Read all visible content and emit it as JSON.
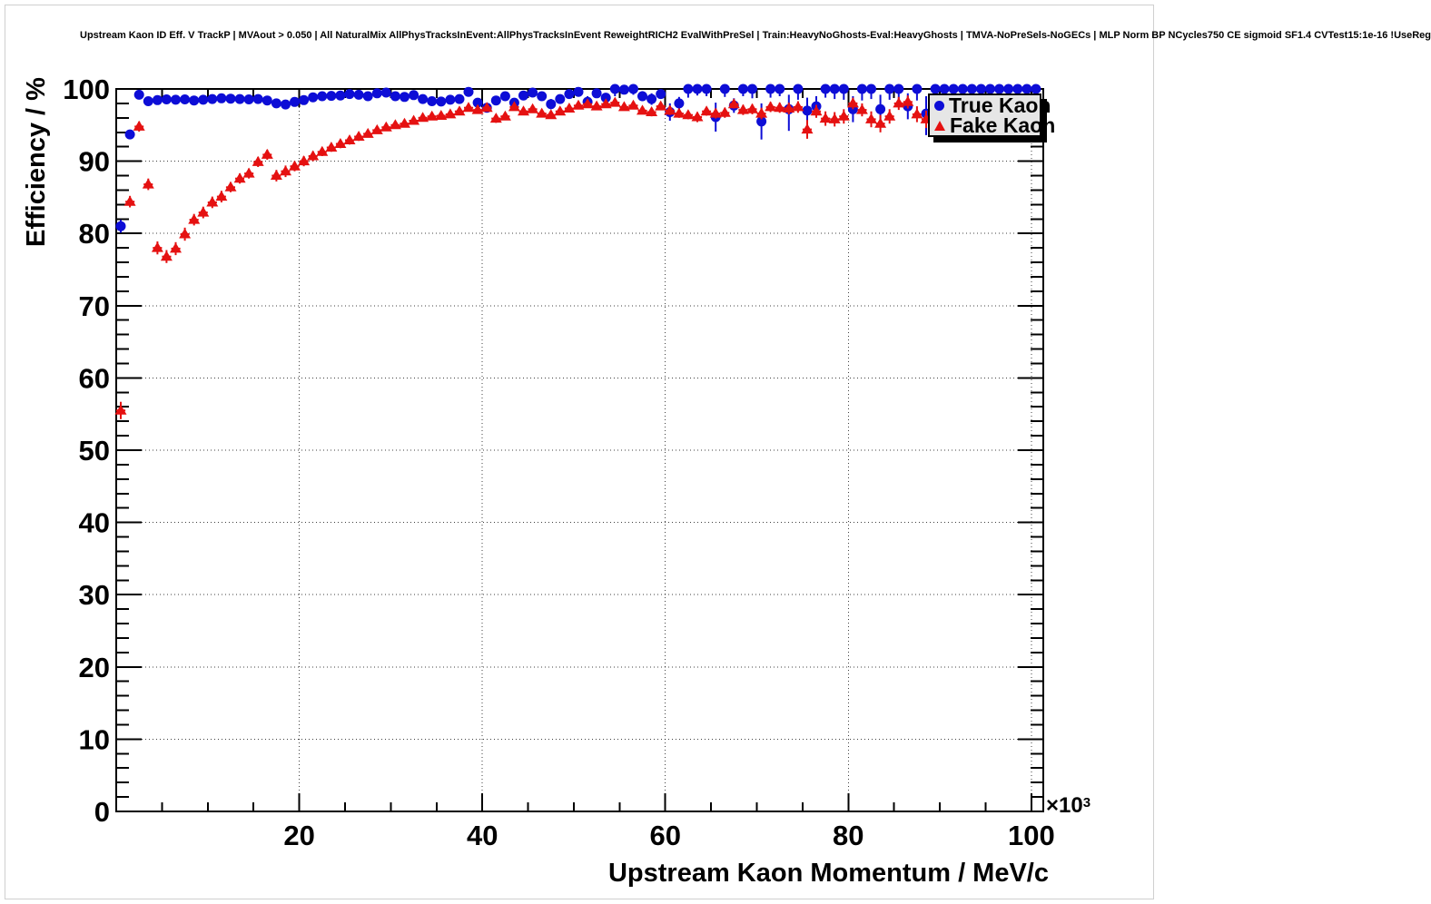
{
  "title": "Upstream Kaon ID Eff. V TrackP | MVAout > 0.050 | All NaturalMix AllPhysTracksInEvent:AllPhysTracksInEvent ReweightRICH2 EvalWithPreSel | Train:HeavyNoGhosts-Eval:HeavyGhosts | TMVA-NoPreSels-NoGECs | MLP Norm BP NCycles750 CE sigmoid SF1.4 CVTest15:1e-16 !UseReg",
  "axes": {
    "x_title": "Upstream Kaon Momentum / MeV/c",
    "y_title": "Efficiency / %",
    "x_multiplier_base": "×10",
    "x_multiplier_exp": "3"
  },
  "legend": {
    "items": [
      {
        "label": "True Kaon",
        "marker": "circle",
        "color": "#0d0dd6"
      },
      {
        "label": "Fake Kaon",
        "marker": "triangle",
        "color": "#e51111"
      }
    ]
  },
  "chart_data": {
    "type": "scatter",
    "title": "Upstream Kaon ID Eff. V TrackP | MVAout > 0.050",
    "xlabel": "Upstream Kaon Momentum / MeV/c",
    "ylabel": "Efficiency / %",
    "x_unit_multiplier": 1000,
    "xlim": [
      0,
      101.3
    ],
    "ylim": [
      0,
      100
    ],
    "xticks": [
      20,
      40,
      60,
      80,
      100
    ],
    "xtick_minor_step": 5,
    "yticks": [
      0,
      10,
      20,
      30,
      40,
      50,
      60,
      70,
      80,
      90,
      100
    ],
    "ytick_minor_step": 2,
    "grid": "dotted-on-major-ticks",
    "legend_position": "top-right",
    "point_format": "[x_momentum_1e3MeV, efficiency_pct, err_low, err_up]",
    "series": [
      {
        "name": "True Kaon",
        "marker": "circle",
        "color": "#0d0dd6",
        "points": [
          [
            0.5,
            81.0,
            0.9,
            0.9
          ],
          [
            1.5,
            93.7,
            0.5,
            0.5
          ],
          [
            2.5,
            99.2,
            0.3,
            0.3
          ],
          [
            3.5,
            98.3,
            0.3,
            0.3
          ],
          [
            4.5,
            98.45,
            0.25,
            0.25
          ],
          [
            5.5,
            98.55,
            0.2,
            0.2
          ],
          [
            6.5,
            98.5,
            0.2,
            0.2
          ],
          [
            7.5,
            98.55,
            0.2,
            0.2
          ],
          [
            8.5,
            98.4,
            0.2,
            0.2
          ],
          [
            9.5,
            98.5,
            0.2,
            0.2
          ],
          [
            10.5,
            98.6,
            0.2,
            0.2
          ],
          [
            11.5,
            98.7,
            0.2,
            0.2
          ],
          [
            12.5,
            98.65,
            0.2,
            0.2
          ],
          [
            13.5,
            98.6,
            0.2,
            0.2
          ],
          [
            14.5,
            98.55,
            0.2,
            0.2
          ],
          [
            15.5,
            98.6,
            0.2,
            0.2
          ],
          [
            16.5,
            98.4,
            0.25,
            0.25
          ],
          [
            17.5,
            98.0,
            0.25,
            0.25
          ],
          [
            18.5,
            97.85,
            0.3,
            0.3
          ],
          [
            19.5,
            98.2,
            0.25,
            0.25
          ],
          [
            20.5,
            98.45,
            0.25,
            0.25
          ],
          [
            21.5,
            98.85,
            0.2,
            0.2
          ],
          [
            22.5,
            99.0,
            0.2,
            0.2
          ],
          [
            23.5,
            99.05,
            0.2,
            0.2
          ],
          [
            24.5,
            99.1,
            0.2,
            0.2
          ],
          [
            25.5,
            99.3,
            0.15,
            0.15
          ],
          [
            26.5,
            99.2,
            0.2,
            0.2
          ],
          [
            27.5,
            99.0,
            0.2,
            0.2
          ],
          [
            28.5,
            99.4,
            0.15,
            0.15
          ],
          [
            29.5,
            99.5,
            0.15,
            0.15
          ],
          [
            30.5,
            99.0,
            0.2,
            0.2
          ],
          [
            31.5,
            98.9,
            0.25,
            0.25
          ],
          [
            32.5,
            99.15,
            0.2,
            0.2
          ],
          [
            33.5,
            98.6,
            0.3,
            0.3
          ],
          [
            34.5,
            98.3,
            0.3,
            0.3
          ],
          [
            35.5,
            98.25,
            0.3,
            0.3
          ],
          [
            36.5,
            98.5,
            0.3,
            0.3
          ],
          [
            37.5,
            98.6,
            0.3,
            0.3
          ],
          [
            38.5,
            99.6,
            0.2,
            0.2
          ],
          [
            39.5,
            98.1,
            0.4,
            0.4
          ],
          [
            40.5,
            97.4,
            0.6,
            0.6
          ],
          [
            41.5,
            98.4,
            0.4,
            0.4
          ],
          [
            42.5,
            99.0,
            0.35,
            0.35
          ],
          [
            43.5,
            98.1,
            0.5,
            0.5
          ],
          [
            44.5,
            99.1,
            0.6,
            0.6
          ],
          [
            45.5,
            99.5,
            0.5,
            0.5
          ],
          [
            46.5,
            99.0,
            0.4,
            0.4
          ],
          [
            47.5,
            97.9,
            0.7,
            0.7
          ],
          [
            48.5,
            98.6,
            0.5,
            0.5
          ],
          [
            49.5,
            99.3,
            0.4,
            0.4
          ],
          [
            50.5,
            99.6,
            0.3,
            0.3
          ],
          [
            51.5,
            98.2,
            0.8,
            0.8
          ],
          [
            52.5,
            99.4,
            0.4,
            0.4
          ],
          [
            53.5,
            98.8,
            0.5,
            0.5
          ],
          [
            54.5,
            100,
            1.0,
            0
          ],
          [
            55.5,
            99.9,
            0.6,
            0.1
          ],
          [
            56.5,
            100,
            0.8,
            0
          ],
          [
            57.5,
            99.0,
            0.7,
            0.7
          ],
          [
            58.5,
            98.6,
            0.8,
            0.8
          ],
          [
            59.5,
            99.3,
            0.5,
            0.5
          ],
          [
            60.5,
            96.8,
            1.2,
            1.2
          ],
          [
            61.5,
            98.0,
            0.9,
            0.9
          ],
          [
            62.5,
            100,
            1.2,
            0
          ],
          [
            63.5,
            100,
            0.9,
            0
          ],
          [
            64.5,
            100,
            1.0,
            0
          ],
          [
            65.5,
            96.1,
            2.0,
            2.0
          ],
          [
            66.5,
            100,
            1.1,
            0
          ],
          [
            67.5,
            97.7,
            1.0,
            1.0
          ],
          [
            68.5,
            100,
            1.0,
            0
          ],
          [
            69.5,
            100,
            1.3,
            0
          ],
          [
            70.5,
            95.5,
            2.5,
            2.5
          ],
          [
            71.5,
            100,
            1.2,
            0
          ],
          [
            72.5,
            100,
            1.0,
            0
          ],
          [
            73.5,
            97.2,
            3.0,
            2.0
          ],
          [
            74.5,
            100,
            1.5,
            0
          ],
          [
            75.5,
            97.0,
            1.8,
            1.8
          ],
          [
            76.5,
            97.6,
            1.4,
            1.4
          ],
          [
            77.5,
            100,
            1.2,
            0
          ],
          [
            78.5,
            100,
            1.4,
            0
          ],
          [
            79.5,
            100,
            1.5,
            0
          ],
          [
            80.5,
            97.2,
            1.8,
            1.8
          ],
          [
            81.5,
            100,
            1.6,
            0
          ],
          [
            82.5,
            100,
            1.4,
            0
          ],
          [
            83.5,
            97.2,
            2.0,
            2.0
          ],
          [
            84.5,
            100,
            1.5,
            0
          ],
          [
            85.5,
            100,
            1.7,
            0
          ],
          [
            86.5,
            97.6,
            1.8,
            1.8
          ],
          [
            87.5,
            100,
            1.6,
            0
          ],
          [
            88.5,
            96.6,
            3.0,
            2.4
          ],
          [
            89.5,
            100,
            1.8,
            0
          ],
          [
            90.5,
            100,
            1.6,
            0
          ],
          [
            91.5,
            100,
            1.7,
            0
          ],
          [
            92.5,
            100,
            1.8,
            0
          ],
          [
            93.5,
            100,
            2.0,
            0
          ],
          [
            94.5,
            100,
            1.8,
            0
          ],
          [
            95.5,
            100,
            2.0,
            0
          ],
          [
            96.5,
            100,
            2.2,
            0
          ],
          [
            97.5,
            100,
            2.0,
            0
          ],
          [
            98.5,
            100,
            2.3,
            0
          ],
          [
            99.5,
            100,
            2.5,
            0
          ],
          [
            100.5,
            100,
            2.5,
            0
          ]
        ]
      },
      {
        "name": "Fake Kaon",
        "marker": "triangle",
        "color": "#e51111",
        "points": [
          [
            0.5,
            55.5,
            1.2,
            1.2
          ],
          [
            1.5,
            84.4,
            0.8,
            0.8
          ],
          [
            2.5,
            94.8,
            0.7,
            0.7
          ],
          [
            3.5,
            86.8,
            0.8,
            0.8
          ],
          [
            4.5,
            78.0,
            0.9,
            0.9
          ],
          [
            5.5,
            76.8,
            0.9,
            0.9
          ],
          [
            6.5,
            77.9,
            0.9,
            0.9
          ],
          [
            7.5,
            79.9,
            0.9,
            0.9
          ],
          [
            8.5,
            81.9,
            0.8,
            0.8
          ],
          [
            9.5,
            82.9,
            0.8,
            0.8
          ],
          [
            10.5,
            84.3,
            0.8,
            0.8
          ],
          [
            11.5,
            85.1,
            0.8,
            0.8
          ],
          [
            12.5,
            86.4,
            0.7,
            0.7
          ],
          [
            13.5,
            87.6,
            0.7,
            0.7
          ],
          [
            14.5,
            88.3,
            0.7,
            0.7
          ],
          [
            15.5,
            89.9,
            0.7,
            0.7
          ],
          [
            16.5,
            90.9,
            0.7,
            0.7
          ],
          [
            17.5,
            88.0,
            0.8,
            0.8
          ],
          [
            18.5,
            88.6,
            0.8,
            0.8
          ],
          [
            19.5,
            89.3,
            0.7,
            0.7
          ],
          [
            20.5,
            90.0,
            0.7,
            0.7
          ],
          [
            21.5,
            90.7,
            0.7,
            0.7
          ],
          [
            22.5,
            91.3,
            0.6,
            0.6
          ],
          [
            23.5,
            91.9,
            0.6,
            0.6
          ],
          [
            24.5,
            92.4,
            0.6,
            0.6
          ],
          [
            25.5,
            92.9,
            0.6,
            0.6
          ],
          [
            26.5,
            93.4,
            0.6,
            0.6
          ],
          [
            27.5,
            93.8,
            0.5,
            0.5
          ],
          [
            28.5,
            94.3,
            0.5,
            0.5
          ],
          [
            29.5,
            94.7,
            0.5,
            0.5
          ],
          [
            30.5,
            95.0,
            0.5,
            0.5
          ],
          [
            31.5,
            95.2,
            0.5,
            0.5
          ],
          [
            32.5,
            95.6,
            0.5,
            0.5
          ],
          [
            33.5,
            96.0,
            0.5,
            0.5
          ],
          [
            34.5,
            96.2,
            0.4,
            0.4
          ],
          [
            35.5,
            96.3,
            0.4,
            0.4
          ],
          [
            36.5,
            96.5,
            0.4,
            0.4
          ],
          [
            37.5,
            96.9,
            0.4,
            0.4
          ],
          [
            38.5,
            97.4,
            0.4,
            0.4
          ],
          [
            39.5,
            97.1,
            0.4,
            0.4
          ],
          [
            40.5,
            97.4,
            0.4,
            0.4
          ],
          [
            41.5,
            95.9,
            0.6,
            0.6
          ],
          [
            42.5,
            96.2,
            0.5,
            0.5
          ],
          [
            43.5,
            97.5,
            0.4,
            0.4
          ],
          [
            44.5,
            96.9,
            0.5,
            0.5
          ],
          [
            45.5,
            97.2,
            0.5,
            0.5
          ],
          [
            46.5,
            96.6,
            0.5,
            0.5
          ],
          [
            47.5,
            96.4,
            0.5,
            0.5
          ],
          [
            48.5,
            96.9,
            0.5,
            0.5
          ],
          [
            49.5,
            97.3,
            0.5,
            0.5
          ],
          [
            50.5,
            97.7,
            0.4,
            0.4
          ],
          [
            51.5,
            97.9,
            0.4,
            0.4
          ],
          [
            52.5,
            97.6,
            0.5,
            0.5
          ],
          [
            53.5,
            97.9,
            0.4,
            0.4
          ],
          [
            54.5,
            98.1,
            0.4,
            0.4
          ],
          [
            55.5,
            97.5,
            0.5,
            0.5
          ],
          [
            56.5,
            97.7,
            0.5,
            0.5
          ],
          [
            57.5,
            97.0,
            0.5,
            0.5
          ],
          [
            58.5,
            96.8,
            0.6,
            0.6
          ],
          [
            59.5,
            97.6,
            0.5,
            0.5
          ],
          [
            60.5,
            97.0,
            0.6,
            0.6
          ],
          [
            61.5,
            96.6,
            0.6,
            0.6
          ],
          [
            62.5,
            96.4,
            0.6,
            0.6
          ],
          [
            63.5,
            96.1,
            0.7,
            0.7
          ],
          [
            64.5,
            96.9,
            0.6,
            0.6
          ],
          [
            65.5,
            96.6,
            0.7,
            0.7
          ],
          [
            66.5,
            96.7,
            0.7,
            0.7
          ],
          [
            67.5,
            97.9,
            0.6,
            0.6
          ],
          [
            68.5,
            97.1,
            0.7,
            0.7
          ],
          [
            69.5,
            97.2,
            0.7,
            0.7
          ],
          [
            70.5,
            96.6,
            0.8,
            0.8
          ],
          [
            71.5,
            97.5,
            0.7,
            0.7
          ],
          [
            72.5,
            97.4,
            0.7,
            0.7
          ],
          [
            73.5,
            97.3,
            0.8,
            0.8
          ],
          [
            74.5,
            97.5,
            0.8,
            0.8
          ],
          [
            75.5,
            94.4,
            1.3,
            1.3
          ],
          [
            76.5,
            96.9,
            0.9,
            0.9
          ],
          [
            77.5,
            95.9,
            1.0,
            1.0
          ],
          [
            78.5,
            95.8,
            1.0,
            1.0
          ],
          [
            79.5,
            96.2,
            1.0,
            1.0
          ],
          [
            80.5,
            98.0,
            0.8,
            0.8
          ],
          [
            81.5,
            97.1,
            0.9,
            0.9
          ],
          [
            82.5,
            95.8,
            1.1,
            1.1
          ],
          [
            83.5,
            95.2,
            1.2,
            1.2
          ],
          [
            84.5,
            96.2,
            1.0,
            1.0
          ],
          [
            85.5,
            98.0,
            0.9,
            0.9
          ],
          [
            86.5,
            98.2,
            0.9,
            0.9
          ],
          [
            87.5,
            96.5,
            1.1,
            1.1
          ],
          [
            88.5,
            95.8,
            1.2,
            1.2
          ]
        ]
      }
    ]
  }
}
